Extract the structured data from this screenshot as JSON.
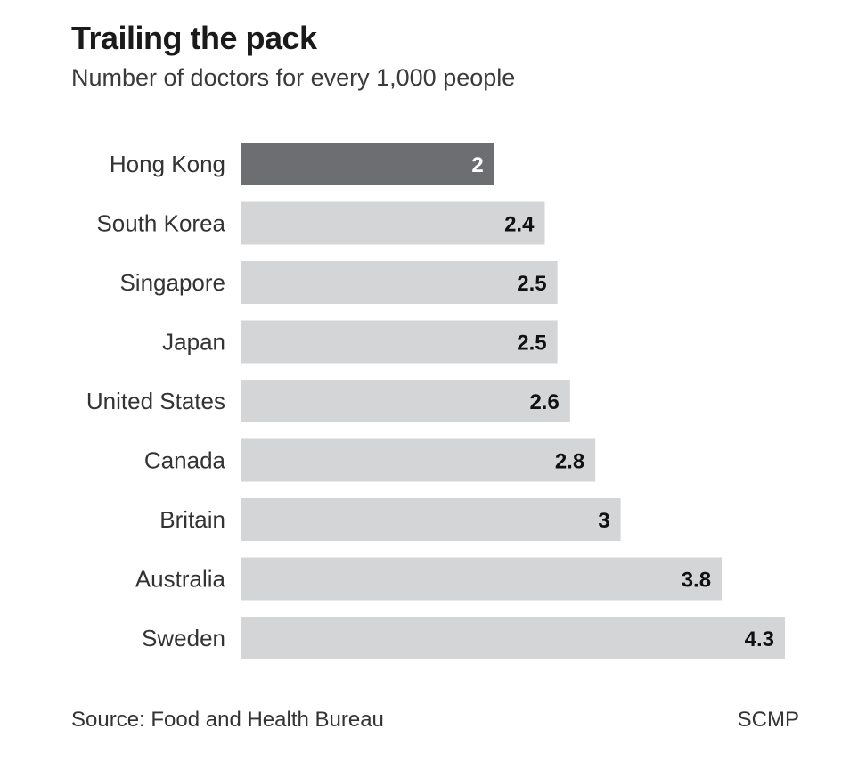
{
  "header": {
    "title": "Trailing the pack",
    "subtitle": "Number of doctors for every 1,000 people"
  },
  "footer": {
    "source": "Source: Food and Health Bureau",
    "credit": "SCMP"
  },
  "colors": {
    "highlight_bar": "#6d6e71",
    "default_bar": "#d4d5d6",
    "highlight_value_text": "#ffffff",
    "default_value_text": "#111111",
    "category_text": "#333333"
  },
  "chart_data": {
    "type": "bar",
    "orientation": "horizontal",
    "title": "Trailing the pack",
    "subtitle": "Number of doctors for every 1,000 people",
    "xlabel": "",
    "ylabel": "",
    "grid": false,
    "categories": [
      "Hong Kong",
      "South Korea",
      "Singapore",
      "Japan",
      "United States",
      "Canada",
      "Britain",
      "Australia",
      "Sweden"
    ],
    "values": [
      2,
      2.4,
      2.5,
      2.5,
      2.6,
      2.8,
      3,
      3.8,
      4.3
    ],
    "value_labels": [
      "2",
      "2.4",
      "2.5",
      "2.5",
      "2.6",
      "2.8",
      "3",
      "3.8",
      "4.3"
    ],
    "highlight": "Hong Kong",
    "xlim": [
      0,
      4.3
    ]
  }
}
